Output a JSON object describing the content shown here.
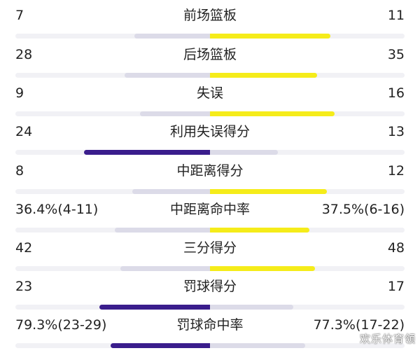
{
  "colors": {
    "home_high": "#3a1d8c",
    "home_low": "#dcdbe8",
    "away_high": "#f5ec1a",
    "away_low": "#dcdbe8",
    "track": "#f1f1f5"
  },
  "stats": [
    {
      "label": "前场篮板",
      "home": "7",
      "away": "11",
      "home_frac": 0.39,
      "away_frac": 0.62,
      "home_high": false,
      "away_high": true
    },
    {
      "label": "后场篮板",
      "home": "28",
      "away": "35",
      "home_frac": 0.44,
      "away_frac": 0.55,
      "home_high": false,
      "away_high": true
    },
    {
      "label": "失误",
      "home": "9",
      "away": "16",
      "home_frac": 0.36,
      "away_frac": 0.64,
      "home_high": false,
      "away_high": true
    },
    {
      "label": "利用失误得分",
      "home": "24",
      "away": "13",
      "home_frac": 0.65,
      "away_frac": 0.35,
      "home_high": true,
      "away_high": false
    },
    {
      "label": "中距离得分",
      "home": "8",
      "away": "12",
      "home_frac": 0.4,
      "away_frac": 0.6,
      "home_high": false,
      "away_high": true
    },
    {
      "label": "中距离命中率",
      "home": "36.4%(4-11)",
      "away": "37.5%(6-16)",
      "home_frac": 0.49,
      "away_frac": 0.51,
      "home_high": false,
      "away_high": true
    },
    {
      "label": "三分得分",
      "home": "42",
      "away": "48",
      "home_frac": 0.46,
      "away_frac": 0.54,
      "home_high": false,
      "away_high": true
    },
    {
      "label": "罚球得分",
      "home": "23",
      "away": "17",
      "home_frac": 0.57,
      "away_frac": 0.43,
      "home_high": true,
      "away_high": false
    },
    {
      "label": "罚球命中率",
      "home": "79.3%(23-29)",
      "away": "77.3%(17-22)",
      "home_frac": 0.51,
      "away_frac": 0.49,
      "home_high": true,
      "away_high": false
    }
  ],
  "watermark": "欢乐体育领"
}
